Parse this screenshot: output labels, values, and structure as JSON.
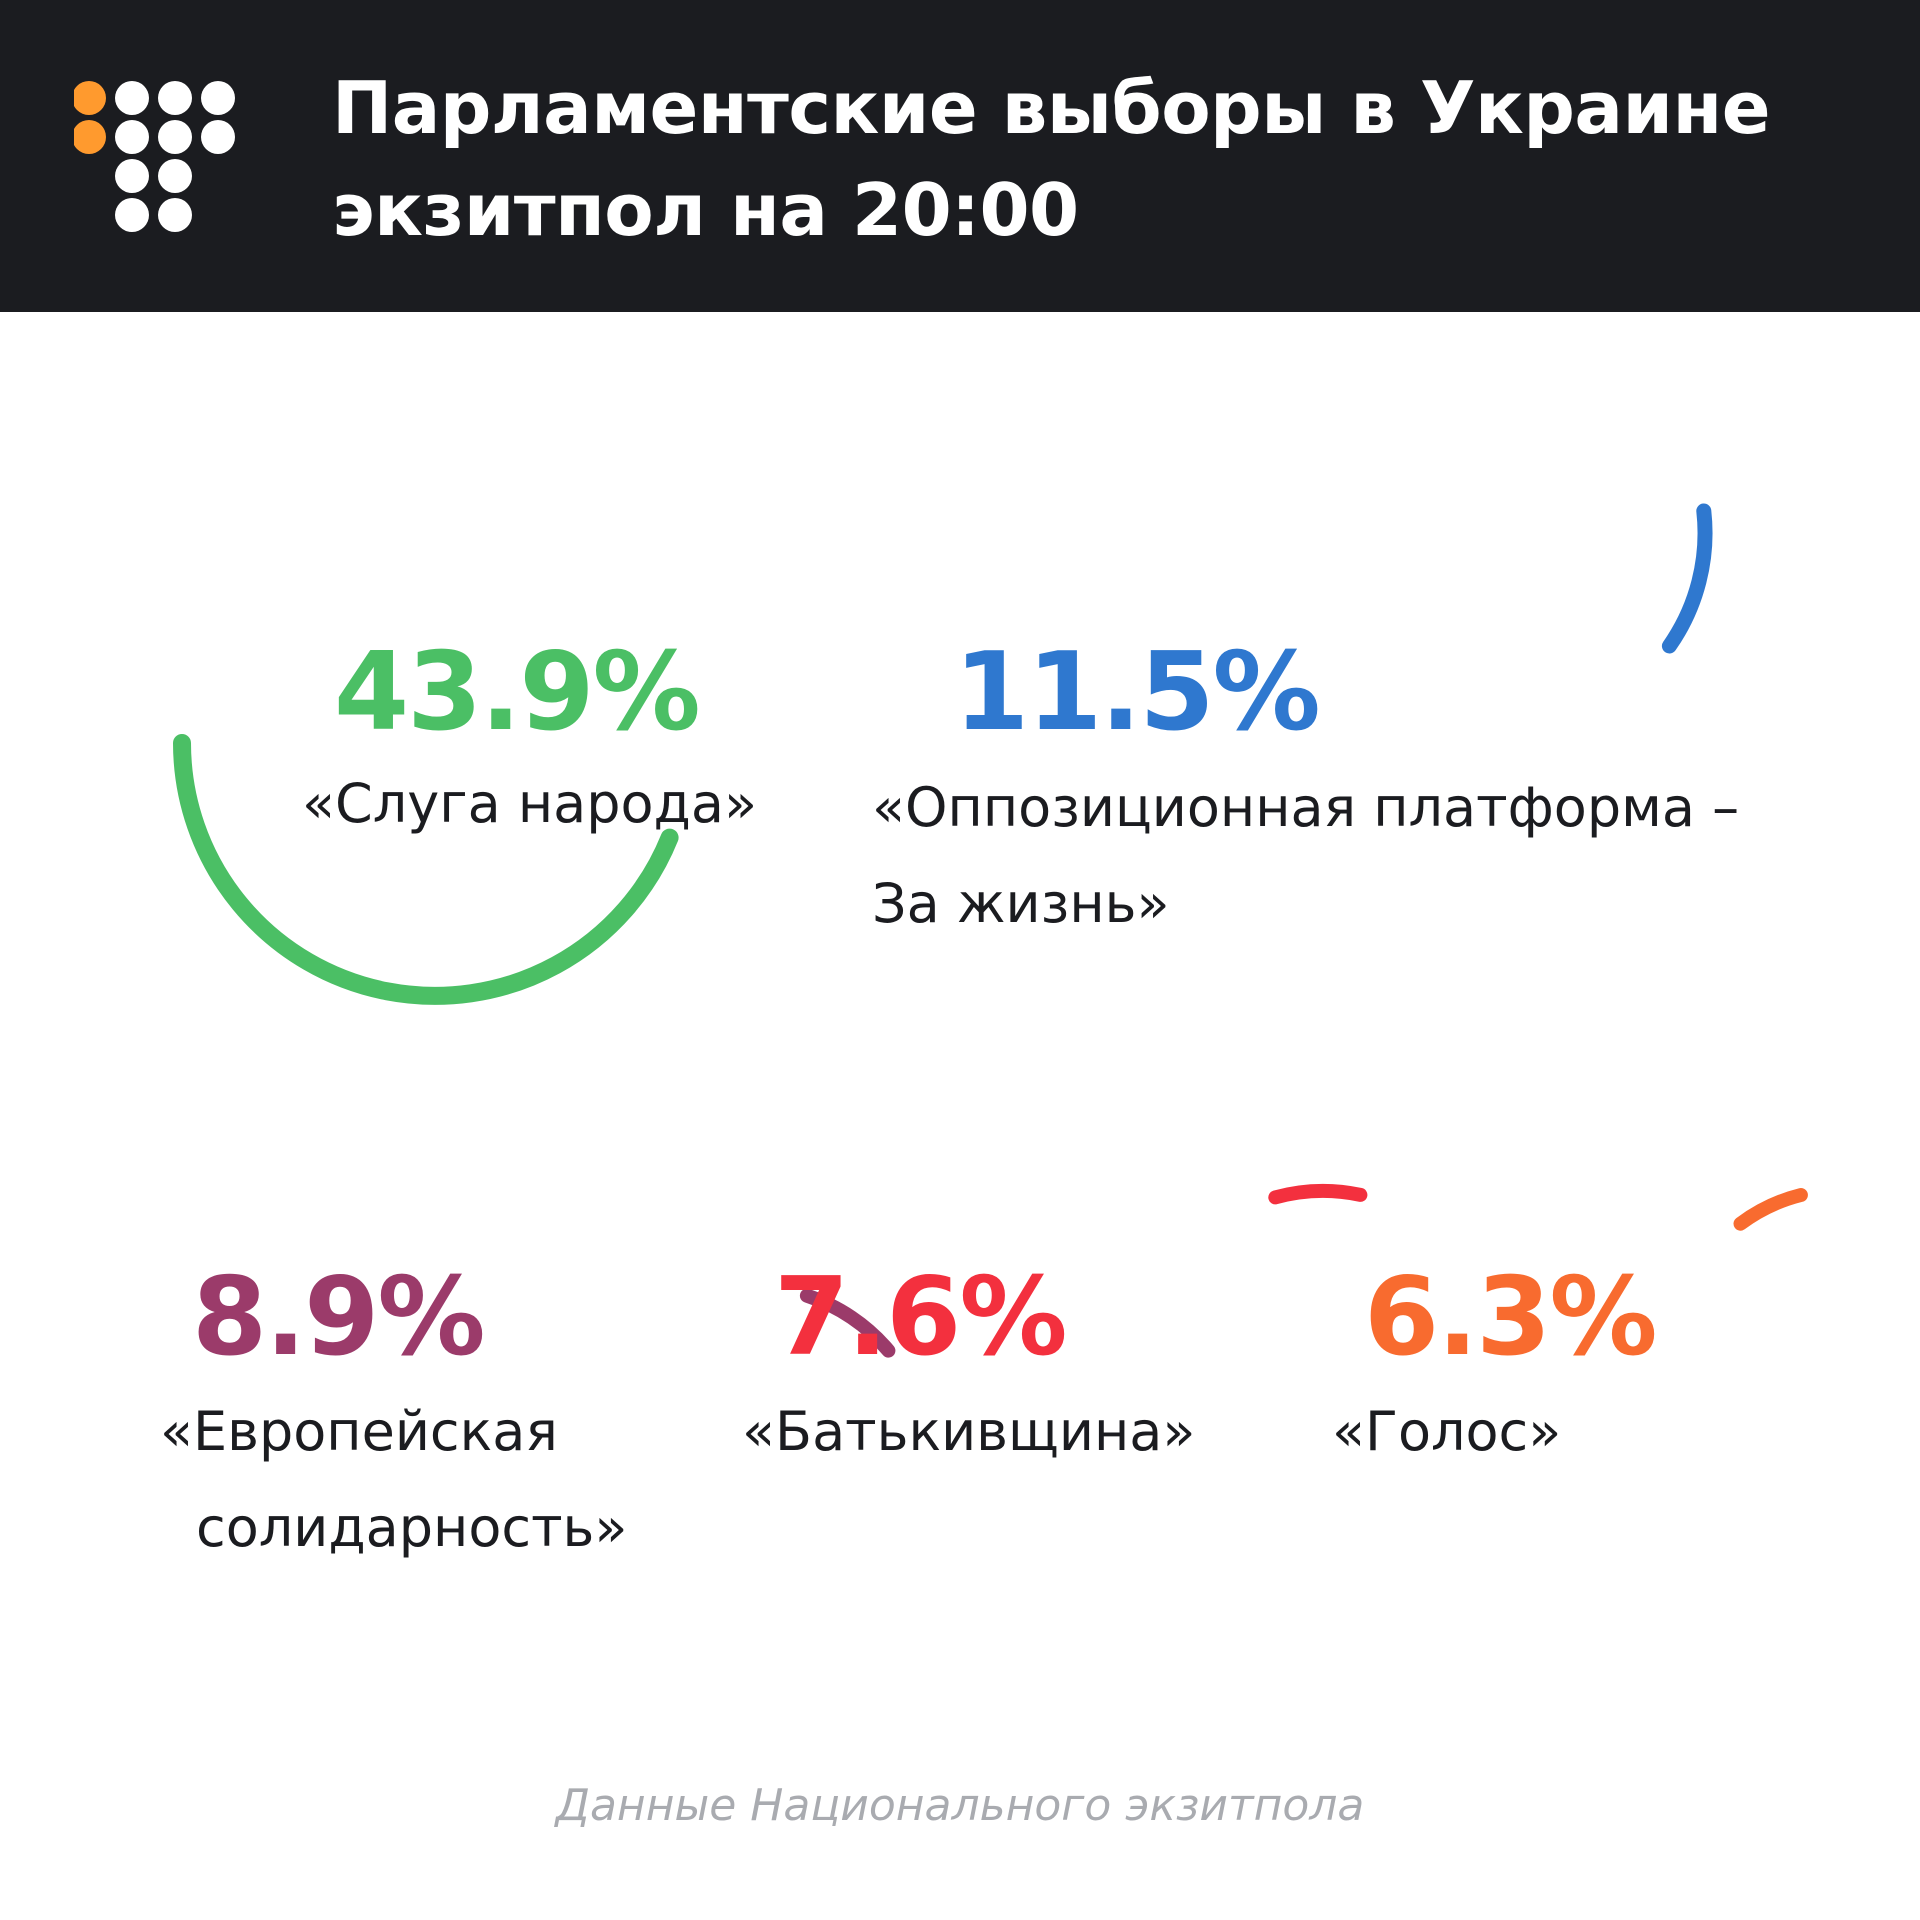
{
  "header": {
    "title_line1": "Парламентские выборы в Украине",
    "title_line2": "экзитпол на 20:00",
    "background": "#1b1c20",
    "logo_colors": {
      "accent": "#ff9a2e",
      "base": "#ffffff"
    }
  },
  "chart_data": {
    "type": "radial-bar",
    "title": "Парламентские выборы в Украине экзитпол на 20:00",
    "unit": "%",
    "series": [
      {
        "name": "«Слуга народа»",
        "value": 43.9,
        "label": "43.9%",
        "name_lines": [
          "«Слуга народа»"
        ],
        "color": "#4bbf65"
      },
      {
        "name": "«Оппозиционная платформа – За жизнь»",
        "value": 11.5,
        "label": "11.5%",
        "name_lines": [
          "«Оппозиционная платформа –",
          "За жизнь»"
        ],
        "color": "#2f78cf"
      },
      {
        "name": "«Европейская солидарность»",
        "value": 8.9,
        "label": "8.9%",
        "name_lines": [
          "«Европейская",
          "солидарность»"
        ],
        "color": "#9b3b6a"
      },
      {
        "name": "«Батькивщина»",
        "value": 7.6,
        "label": "7.6%",
        "name_lines": [
          "«Батькивщина»"
        ],
        "color": "#f3303e"
      },
      {
        "name": "«Голос»",
        "value": 6.3,
        "label": "6.3%",
        "name_lines": [
          "«Голос»"
        ],
        "color": "#f86b2f"
      }
    ]
  },
  "footer": {
    "source": "Данные Национального экзитпола"
  }
}
